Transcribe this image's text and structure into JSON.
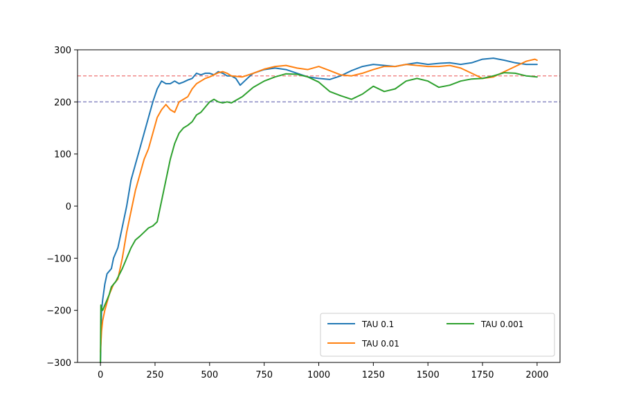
{
  "chart_data": {
    "type": "line",
    "title": "",
    "xlabel": "",
    "ylabel": "",
    "xlim": [
      -105,
      2105
    ],
    "ylim": [
      -300,
      300
    ],
    "xticks": [
      0,
      250,
      500,
      750,
      1000,
      1250,
      1500,
      1750,
      2000
    ],
    "yticks": [
      -300,
      -200,
      -100,
      0,
      100,
      200,
      300
    ],
    "xtick_labels": [
      "0",
      "250",
      "500",
      "750",
      "1000",
      "1250",
      "1500",
      "1750",
      "2000"
    ],
    "ytick_labels": [
      "−300",
      "−200",
      "−100",
      "0",
      "100",
      "200",
      "300"
    ],
    "grid": false,
    "legend": {
      "placement": "lower right",
      "columns": 2
    },
    "reference_lines": [
      {
        "y": 250,
        "color": "#f08080",
        "style": "dashed"
      },
      {
        "y": 200,
        "color": "#7f7fbf",
        "style": "dashed"
      }
    ],
    "series": [
      {
        "name": "TAU 0.1",
        "color": "#1f77b4",
        "x": [
          0,
          5,
          10,
          20,
          30,
          40,
          50,
          60,
          80,
          100,
          120,
          140,
          160,
          180,
          200,
          220,
          240,
          260,
          280,
          300,
          320,
          340,
          360,
          380,
          400,
          420,
          440,
          460,
          480,
          500,
          520,
          540,
          560,
          580,
          600,
          620,
          640,
          660,
          680,
          700,
          750,
          800,
          850,
          900,
          950,
          1000,
          1050,
          1100,
          1150,
          1200,
          1250,
          1300,
          1350,
          1400,
          1450,
          1500,
          1550,
          1600,
          1650,
          1700,
          1750,
          1800,
          1850,
          1900,
          1950,
          2000
        ],
        "y": [
          -300,
          -200,
          -180,
          -150,
          -130,
          -125,
          -120,
          -100,
          -80,
          -40,
          0,
          50,
          80,
          110,
          140,
          170,
          200,
          225,
          240,
          235,
          235,
          240,
          235,
          238,
          242,
          245,
          255,
          252,
          255,
          255,
          252,
          258,
          255,
          250,
          250,
          245,
          232,
          240,
          248,
          255,
          262,
          265,
          262,
          255,
          248,
          245,
          243,
          250,
          260,
          268,
          272,
          270,
          268,
          272,
          275,
          272,
          274,
          275,
          272,
          275,
          282,
          284,
          280,
          275,
          272,
          272
        ]
      },
      {
        "name": "TAU 0.01",
        "color": "#ff7f0e",
        "x": [
          0,
          5,
          10,
          20,
          40,
          60,
          80,
          100,
          120,
          140,
          160,
          180,
          200,
          220,
          240,
          260,
          280,
          300,
          320,
          340,
          360,
          380,
          400,
          420,
          440,
          460,
          480,
          500,
          520,
          540,
          560,
          580,
          600,
          650,
          700,
          750,
          800,
          850,
          900,
          950,
          1000,
          1050,
          1100,
          1150,
          1200,
          1250,
          1300,
          1350,
          1400,
          1450,
          1500,
          1550,
          1600,
          1650,
          1700,
          1750,
          1800,
          1850,
          1900,
          1950,
          1990,
          2000
        ],
        "y": [
          -280,
          -240,
          -220,
          -200,
          -170,
          -150,
          -140,
          -100,
          -50,
          -10,
          30,
          60,
          90,
          110,
          140,
          170,
          185,
          195,
          185,
          180,
          200,
          205,
          210,
          225,
          235,
          240,
          245,
          248,
          252,
          256,
          258,
          255,
          250,
          248,
          255,
          263,
          268,
          270,
          265,
          262,
          268,
          260,
          252,
          250,
          255,
          262,
          268,
          268,
          272,
          270,
          268,
          268,
          270,
          265,
          255,
          245,
          248,
          258,
          268,
          278,
          282,
          280
        ]
      },
      {
        "name": "TAU 0.001",
        "color": "#2ca02c",
        "x": [
          0,
          2,
          5,
          10,
          20,
          30,
          40,
          50,
          70,
          100,
          120,
          140,
          160,
          180,
          200,
          220,
          240,
          260,
          280,
          300,
          320,
          340,
          360,
          380,
          400,
          420,
          440,
          460,
          480,
          500,
          520,
          540,
          560,
          580,
          600,
          650,
          700,
          750,
          800,
          850,
          900,
          950,
          1000,
          1050,
          1100,
          1150,
          1200,
          1250,
          1300,
          1350,
          1400,
          1450,
          1500,
          1550,
          1600,
          1650,
          1700,
          1750,
          1800,
          1850,
          1900,
          1950,
          2000
        ],
        "y": [
          -300,
          -190,
          -195,
          -200,
          -190,
          -180,
          -170,
          -155,
          -145,
          -120,
          -100,
          -80,
          -65,
          -58,
          -50,
          -42,
          -38,
          -30,
          10,
          50,
          90,
          120,
          140,
          150,
          155,
          162,
          175,
          180,
          190,
          200,
          205,
          200,
          198,
          200,
          198,
          210,
          228,
          240,
          248,
          254,
          253,
          248,
          238,
          220,
          212,
          205,
          215,
          230,
          220,
          225,
          240,
          245,
          240,
          228,
          232,
          240,
          244,
          245,
          250,
          256,
          255,
          250,
          248
        ]
      }
    ]
  }
}
